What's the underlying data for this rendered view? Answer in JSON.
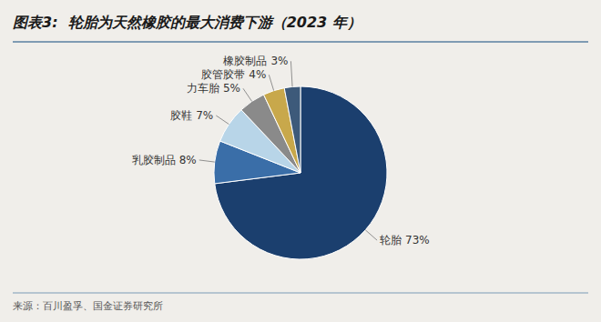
{
  "chart_data": {
    "type": "pie",
    "title": "图表3:  轮胎为天然橡胶的最大消费下游（2023 年）",
    "source": "来源：百川盈孚、国金证券研究所",
    "categories": [
      "轮胎",
      "乳胶制品",
      "胶鞋",
      "力车胎",
      "胶管胶带",
      "橡胶制品"
    ],
    "values": [
      73,
      8,
      7,
      5,
      4,
      3
    ],
    "value_labels": [
      "73%",
      "8%",
      "7%",
      "5%",
      "4%",
      "3%"
    ],
    "colors": [
      "#1b3f6e",
      "#3a6ea8",
      "#b8d5e8",
      "#8a8a8a",
      "#c8a84b",
      "#3d5a7a"
    ],
    "data_labels": true
  }
}
